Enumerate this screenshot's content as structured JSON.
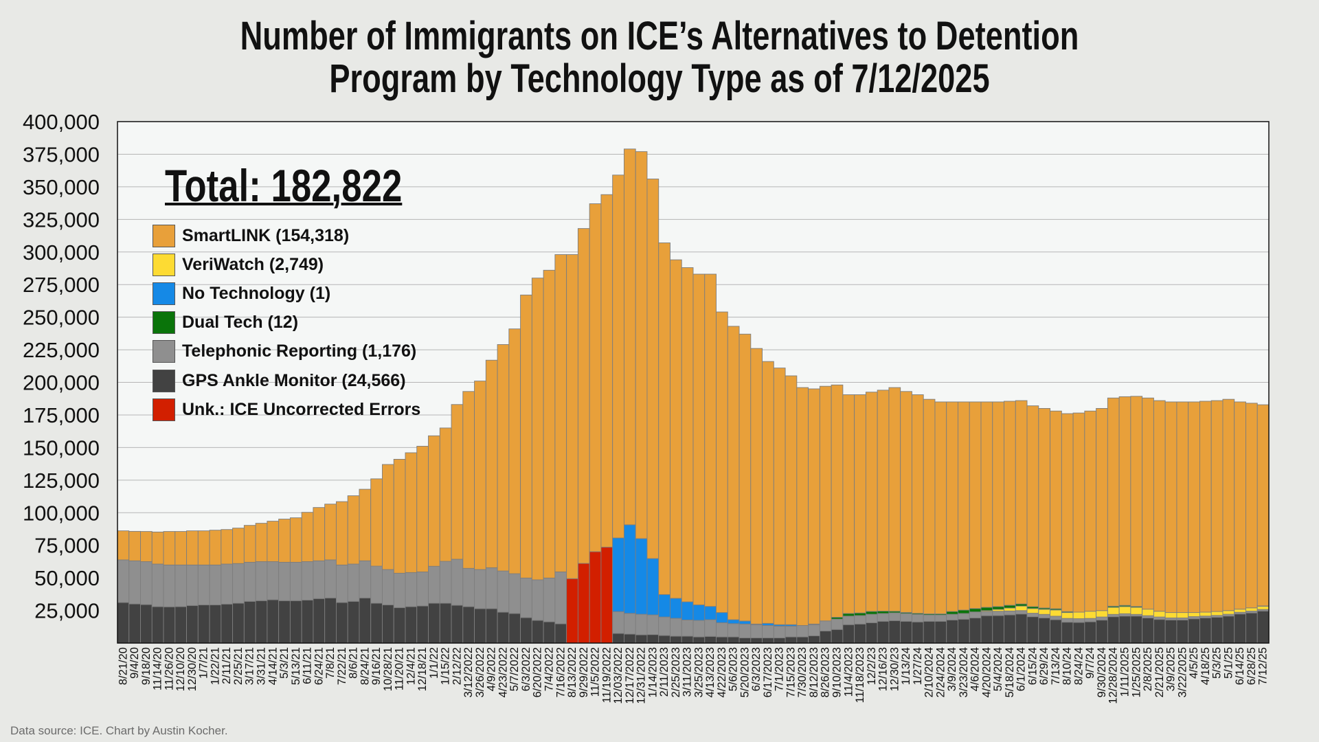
{
  "chart_data": {
    "type": "bar",
    "stacked": true,
    "title": "Number of Immigrants on ICE’s Alternatives to Detention Program by Technology Type as of 7/12/2025",
    "title_lines": [
      "Number of Immigrants on ICE’s Alternatives to Detention",
      "Program by Technology Type as of 7/12/2025"
    ],
    "annotation": "Total: 182,822",
    "source": "Data source: ICE. Chart by Austin Kocher.",
    "xlabel": "",
    "ylabel": "",
    "ylim": [
      0,
      400000
    ],
    "value_multiplier": 1000,
    "y_ticks": [
      "25,000",
      "50,000",
      "75,000",
      "100,000",
      "125,000",
      "150,000",
      "175,000",
      "200,000",
      "225,000",
      "250,000",
      "275,000",
      "300,000",
      "325,000",
      "350,000",
      "375,000",
      "400,000"
    ],
    "y_tick_values": [
      25000,
      50000,
      75000,
      100000,
      125000,
      150000,
      175000,
      200000,
      225000,
      250000,
      275000,
      300000,
      325000,
      350000,
      375000,
      400000
    ],
    "grid": true,
    "legend_position": "top-left",
    "categories": [
      "8/21/20",
      "9/4/20",
      "9/18/20",
      "11/14/20",
      "11/26/20",
      "12/10/20",
      "12/30/20",
      "1/7/21",
      "1/22/21",
      "2/11/21",
      "2/25/21",
      "3/17/21",
      "3/31/21",
      "4/14/21",
      "5/3/21",
      "5/13/21",
      "6/11/21",
      "6/24/21",
      "7/8/21",
      "7/22/21",
      "8/6/21",
      "8/24/21",
      "9/16/21",
      "10/28/21",
      "11/20/21",
      "12/4/21",
      "12/18/21",
      "1/1/22",
      "1/15/22",
      "2/12/22",
      "3/12/2022",
      "3/26/2022",
      "4/9/2022",
      "4/23/2022",
      "5/7/2022",
      "6/3/2022",
      "6/20/2022",
      "7/4/2022",
      "7/16/2022",
      "8/13/2022",
      "9/29/2022",
      "11/5/2022",
      "11/19/2022",
      "12/03/2022",
      "12/17/2022",
      "12/31/2022",
      "1/14/2023",
      "2/11/2023",
      "2/25/2023",
      "3/11/2023",
      "3/25/2023",
      "4/13/2023",
      "4/22/2023",
      "5/6/2023",
      "5/20/2023",
      "6/3/2023",
      "6/17/2023",
      "7/1/2023",
      "7/15/2023",
      "7/30/2023",
      "8/12/2023",
      "8/26/2023",
      "9/10/2023",
      "11/4/2023",
      "11/18/2023",
      "12/2/23",
      "12/16/23",
      "12/30/23",
      "1/13/24",
      "1/27/24",
      "2/10/2024",
      "2/24/2024",
      "3/9/2024",
      "3/23/2024",
      "4/6/2024",
      "4/20/2024",
      "5/4/2024",
      "5/18/2024",
      "6/1/2024",
      "6/15/24",
      "6/29/24",
      "7/13/24",
      "8/10/24",
      "8/24/24",
      "9/7/24",
      "9/30/2024",
      "12/28/2024",
      "1/11/2025",
      "1/25/2025",
      "2/8/2025",
      "2/21/2025",
      "3/9/2025",
      "3/22/2025",
      "4/5/25",
      "4/18/25",
      "5/3/25",
      "5/1/25",
      "6/14/25",
      "6/28/25",
      "7/12/25"
    ],
    "series": [
      {
        "key": "gps",
        "name": "GPS Ankle Monitor (24,566)",
        "color": "#424242",
        "values": [
          31.1,
          30.0,
          29.5,
          27.9,
          27.8,
          27.9,
          28.8,
          29.3,
          29.3,
          29.9,
          30.6,
          32.0,
          32.5,
          33.2,
          32.5,
          32.5,
          33.0,
          34.1,
          34.6,
          31.1,
          32.0,
          34.6,
          30.6,
          29.3,
          27.2,
          27.9,
          28.5,
          30.6,
          30.6,
          29.0,
          27.9,
          26.4,
          26.4,
          23.7,
          22.7,
          19.5,
          17.4,
          16.3,
          14.8,
          0,
          0,
          0,
          0,
          7.4,
          6.9,
          6.3,
          6.5,
          5.8,
          5.3,
          5.3,
          4.7,
          5.1,
          4.7,
          4.7,
          4.0,
          4.0,
          4.0,
          4.0,
          4.7,
          4.7,
          5.6,
          9.3,
          10.4,
          14.1,
          14.6,
          15.6,
          16.7,
          17.2,
          16.7,
          16.2,
          16.7,
          16.7,
          17.7,
          18.3,
          19.3,
          21.0,
          21.1,
          21.6,
          22.3,
          20.2,
          19.3,
          17.9,
          16.0,
          15.8,
          16.3,
          17.6,
          20.2,
          20.7,
          20.7,
          19.3,
          18.1,
          17.7,
          17.7,
          18.6,
          19.3,
          19.8,
          20.7,
          22.3,
          23.1,
          24.566
        ]
      },
      {
        "key": "tel",
        "name": "Telephonic Reporting (1,176)",
        "color": "#8f8f8f",
        "values": [
          32.7,
          33.1,
          33.0,
          32.7,
          32.1,
          32.0,
          31.1,
          30.6,
          30.6,
          30.7,
          30.4,
          30.0,
          30.0,
          29.3,
          29.5,
          29.5,
          29.5,
          29.0,
          29.2,
          28.8,
          28.6,
          28.5,
          28.4,
          27.1,
          26.4,
          26.2,
          26.1,
          28.3,
          32.1,
          35.3,
          29.4,
          30.0,
          31.4,
          31.6,
          30.5,
          30.4,
          31.1,
          33.6,
          39.8,
          0,
          0,
          0,
          0,
          16.7,
          15.9,
          15.8,
          15.1,
          14.2,
          13.7,
          12.4,
          12.7,
          12.8,
          10.9,
          10.2,
          10.6,
          10.1,
          9.5,
          9.0,
          8.3,
          8.8,
          8.5,
          7.7,
          8.0,
          6.6,
          6.5,
          6.5,
          6.0,
          6.0,
          6.0,
          5.8,
          4.9,
          4.9,
          4.4,
          4.4,
          4.6,
          3.2,
          3.3,
          3.0,
          2.6,
          2.7,
          2.7,
          2.7,
          2.9,
          2.9,
          2.6,
          2.4,
          1.8,
          1.8,
          1.3,
          1.7,
          1.9,
          1.6,
          1.6,
          1.7,
          1.4,
          1.4,
          1.4,
          1.3,
          1.4,
          1.176
        ]
      },
      {
        "key": "unk",
        "name": "Unk.: ICE Uncorrected Errors",
        "color": "#d21f00",
        "values": [
          0,
          0,
          0,
          0,
          0,
          0,
          0,
          0,
          0,
          0,
          0,
          0,
          0,
          0,
          0,
          0,
          0,
          0,
          0,
          0,
          0,
          0,
          0,
          0,
          0,
          0,
          0,
          0,
          0,
          0,
          0,
          0,
          0,
          0,
          0,
          0,
          0,
          0,
          0,
          49.4,
          61.1,
          70.1,
          73.6,
          0,
          0,
          0,
          0,
          0,
          0,
          0,
          0,
          0,
          0,
          0,
          0,
          0,
          0,
          0,
          0,
          0,
          0,
          0,
          0,
          0,
          0,
          0,
          0,
          0,
          0,
          0,
          0,
          0,
          0,
          0,
          0,
          0,
          0,
          0,
          0,
          0,
          0,
          0,
          0,
          0,
          0,
          0,
          0,
          0,
          0,
          0,
          0,
          0,
          0,
          0,
          0,
          0,
          0,
          0,
          0,
          0
        ]
      },
      {
        "key": "none",
        "name": "No Technology (1)",
        "color": "#1589e6",
        "values": [
          0,
          0,
          0,
          0,
          0,
          0,
          0,
          0,
          0,
          0,
          0,
          0,
          0,
          0,
          0,
          0,
          0,
          0,
          0,
          0,
          0,
          0,
          0,
          0,
          0,
          0,
          0,
          0,
          0,
          0,
          0,
          0,
          0,
          0,
          0,
          0,
          0,
          0,
          0,
          0,
          0,
          0,
          0,
          56.5,
          67.9,
          58.0,
          43.2,
          17.2,
          15.3,
          13.9,
          11.9,
          10.2,
          7.8,
          3.0,
          2.3,
          0.5,
          1.6,
          1.1,
          1.1,
          0,
          0.5,
          0,
          0,
          0,
          0,
          0,
          0,
          0,
          0,
          0,
          0,
          0,
          0,
          0,
          0,
          0,
          0,
          0,
          0,
          0,
          0,
          0,
          0,
          0,
          0,
          0,
          0,
          0,
          0,
          0,
          0,
          0,
          0,
          0,
          0,
          0,
          0,
          0,
          0,
          0.001
        ]
      },
      {
        "key": "veri",
        "name": "VeriWatch (2,749)",
        "color": "#fddb33",
        "values": [
          0,
          0,
          0,
          0,
          0,
          0,
          0,
          0,
          0,
          0,
          0,
          0,
          0,
          0,
          0,
          0,
          0,
          0,
          0,
          0,
          0,
          0,
          0,
          0,
          0,
          0,
          0,
          0,
          0,
          0,
          0,
          0,
          0,
          0,
          0,
          0,
          0,
          0,
          0,
          0,
          0,
          0,
          0,
          0,
          0,
          0,
          0,
          0,
          0,
          0,
          0,
          0,
          0,
          0,
          0,
          0,
          0,
          0,
          0,
          0,
          0,
          0,
          0,
          0,
          0,
          0,
          0,
          0,
          0,
          0,
          0,
          0,
          0,
          0,
          0,
          0.7,
          1.4,
          2.3,
          3.5,
          3.6,
          3.9,
          4.8,
          4.5,
          5.0,
          5.5,
          4.9,
          5.4,
          5.5,
          5.4,
          5.0,
          4.4,
          4.1,
          4.1,
          3.1,
          3.0,
          3.0,
          2.8,
          2.4,
          2.5,
          2.749
        ]
      },
      {
        "key": "dual",
        "name": "Dual Tech (12)",
        "color": "#0a740a",
        "values": [
          0,
          0,
          0,
          0,
          0,
          0,
          0,
          0,
          0,
          0,
          0,
          0,
          0,
          0,
          0,
          0,
          0,
          0,
          0,
          0,
          0,
          0,
          0,
          0,
          0,
          0,
          0,
          0,
          0,
          0,
          0,
          0,
          0,
          0,
          0,
          0,
          0,
          0,
          0,
          0,
          0,
          0,
          0,
          0,
          0,
          0,
          0,
          0,
          0,
          0,
          0,
          0,
          0,
          0,
          0,
          0,
          0,
          0,
          0,
          0,
          0,
          0,
          1.4,
          2.0,
          2.0,
          2.2,
          1.8,
          1.2,
          0.8,
          0.8,
          0.8,
          0.8,
          2.1,
          2.6,
          2.6,
          2.5,
          2.2,
          2.1,
          1.6,
          1.4,
          1.0,
          0.9,
          0.7,
          0,
          0,
          0,
          0.9,
          0.9,
          0.7,
          0,
          0,
          0,
          0,
          0,
          0,
          0,
          0,
          0,
          0,
          0.012
        ]
      },
      {
        "key": "smart",
        "name": "SmartLINK (154,318)",
        "color": "#e8a03a",
        "values": [
          22.3,
          22.6,
          23.1,
          24.6,
          25.7,
          25.7,
          26.2,
          26.2,
          26.7,
          26.5,
          27.2,
          28.3,
          29.4,
          31.0,
          33.1,
          34.1,
          37.8,
          40.9,
          42.8,
          48.6,
          52.4,
          54.9,
          67.0,
          80.6,
          87.4,
          91.9,
          96.4,
          100.1,
          102.3,
          118.7,
          135.7,
          144.6,
          159.2,
          173.7,
          187.8,
          217.1,
          231.5,
          236.1,
          243.4,
          248.6,
          256.9,
          266.9,
          270.4,
          278.4,
          288.3,
          296.9,
          291.2,
          269.8,
          259.7,
          256.4,
          253.7,
          254.9,
          230.6,
          225.1,
          220.1,
          211.4,
          200.9,
          196.9,
          190.9,
          182.5,
          180.4,
          180.0,
          178.2,
          167.8,
          167.4,
          168.2,
          169.5,
          171.6,
          169.5,
          167.7,
          164.6,
          162.6,
          160.8,
          159.7,
          158.5,
          157.6,
          157.0,
          156.5,
          156.0,
          154.1,
          153.1,
          151.7,
          151.9,
          152.8,
          153.6,
          155.1,
          159.7,
          160.1,
          161.2,
          162.0,
          161.6,
          161.6,
          161.6,
          161.6,
          161.8,
          161.8,
          162.1,
          159.0,
          157.0,
          154.318
        ]
      }
    ],
    "legend_order": [
      "smart",
      "veri",
      "none",
      "dual",
      "tel",
      "gps",
      "unk"
    ]
  }
}
